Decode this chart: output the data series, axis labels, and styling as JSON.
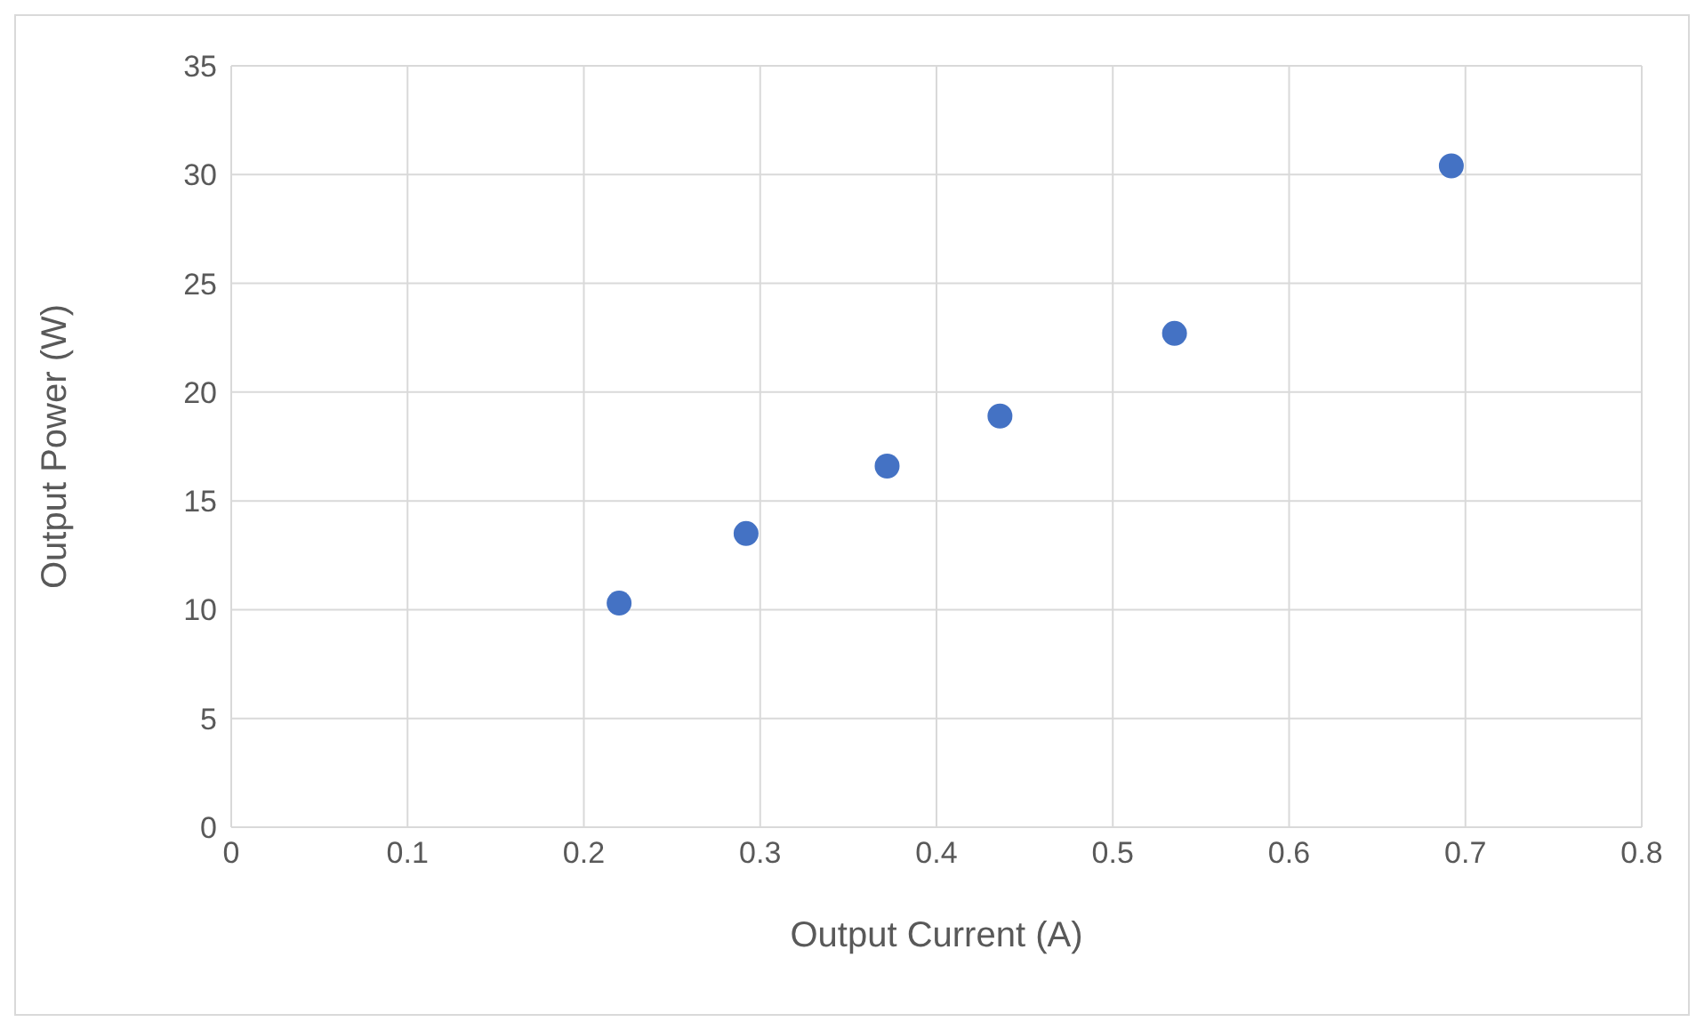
{
  "chart_data": {
    "type": "scatter",
    "xlabel": "Output Current (A)",
    "ylabel": "Output Power (W)",
    "x": [
      0.22,
      0.292,
      0.372,
      0.436,
      0.535,
      0.692
    ],
    "series": [
      {
        "color": "#4472c4",
        "values": [
          10.3,
          13.5,
          16.6,
          18.9,
          22.7,
          30.4
        ]
      }
    ],
    "xlim": [
      0,
      0.8
    ],
    "xticks": [
      0,
      0.1,
      0.2,
      0.3,
      0.4,
      0.5,
      0.6,
      0.7,
      0.8
    ],
    "ylim": [
      0,
      35
    ],
    "yticks": [
      0,
      5,
      10,
      15,
      20,
      25,
      30,
      35
    ],
    "grid": true,
    "marker": "circle"
  }
}
